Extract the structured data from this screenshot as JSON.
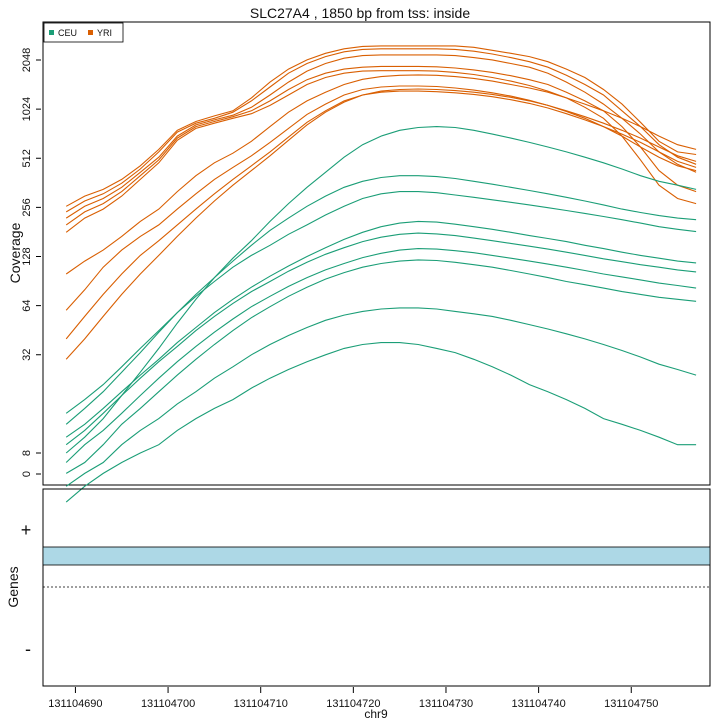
{
  "chart_data": {
    "type": "line",
    "title": "SLC27A4 , 1850 bp from tss: inside",
    "ylabel": "Coverage",
    "xlabel": "chr9",
    "y_scale": "log2",
    "y_ticks": [
      0,
      8,
      32,
      64,
      128,
      256,
      512,
      1024,
      2048
    ],
    "x_ticks": [
      131104690,
      131104700,
      131104710,
      131104720,
      131104730,
      131104740,
      131104750
    ],
    "xlim": [
      131104690,
      131104757
    ],
    "legend_placement": "top-left",
    "legend": [
      {
        "name": "CEU",
        "color": "#1b9e77"
      },
      {
        "name": "YRI",
        "color": "#d95f02"
      }
    ],
    "grid": false,
    "series_template": {
      "x": [
        131104689,
        131104691,
        131104693,
        131104695,
        131104697,
        131104699,
        131104701,
        131104703,
        131104705,
        131104707,
        131104709,
        131104711,
        131104713,
        131104715,
        131104717,
        131104719,
        131104721,
        131104723,
        131104725,
        131104727,
        131104729,
        131104731,
        131104733,
        131104735,
        131104737,
        131104739,
        131104741,
        131104743,
        131104745,
        131104747,
        131104749,
        131104751,
        131104753,
        131104755,
        131104757
      ]
    },
    "series": [
      {
        "group": "YRI",
        "values": [
          260,
          300,
          330,
          380,
          460,
          580,
          760,
          860,
          930,
          1000,
          1200,
          1500,
          1800,
          2050,
          2250,
          2400,
          2480,
          2500,
          2500,
          2500,
          2500,
          2500,
          2450,
          2350,
          2250,
          2150,
          2000,
          1800,
          1600,
          1350,
          1100,
          850,
          650,
          560,
          540
        ]
      },
      {
        "group": "YRI",
        "values": [
          240,
          280,
          310,
          360,
          440,
          560,
          740,
          840,
          900,
          980,
          1150,
          1400,
          1700,
          1950,
          2150,
          2300,
          2380,
          2400,
          2400,
          2400,
          2400,
          2380,
          2320,
          2230,
          2120,
          2000,
          1850,
          1650,
          1450,
          1250,
          1000,
          800,
          620,
          520,
          470
        ]
      },
      {
        "group": "YRI",
        "values": [
          220,
          260,
          290,
          340,
          420,
          520,
          700,
          820,
          880,
          940,
          1050,
          1250,
          1500,
          1750,
          1950,
          2100,
          2180,
          2200,
          2200,
          2200,
          2200,
          2180,
          2120,
          2050,
          1950,
          1850,
          1700,
          1500,
          1300,
          1100,
          900,
          720,
          560,
          470,
          420
        ]
      },
      {
        "group": "YRI",
        "values": [
          200,
          240,
          270,
          320,
          400,
          500,
          680,
          800,
          860,
          920,
          1000,
          1150,
          1350,
          1550,
          1700,
          1800,
          1850,
          1870,
          1870,
          1870,
          1860,
          1830,
          1780,
          1720,
          1640,
          1550,
          1450,
          1300,
          1150,
          1000,
          800,
          600,
          430,
          350,
          320
        ]
      },
      {
        "group": "YRI",
        "values": [
          180,
          220,
          250,
          300,
          380,
          480,
          660,
          780,
          840,
          900,
          960,
          1080,
          1250,
          1450,
          1600,
          1700,
          1750,
          1760,
          1760,
          1760,
          1750,
          1720,
          1670,
          1600,
          1520,
          1430,
          1320,
          1200,
          1050,
          900,
          700,
          500,
          350,
          290,
          270
        ]
      },
      {
        "group": "YRI",
        "values": [
          100,
          120,
          140,
          170,
          210,
          250,
          320,
          400,
          480,
          550,
          650,
          800,
          980,
          1150,
          1300,
          1450,
          1560,
          1620,
          1650,
          1660,
          1650,
          1620,
          1580,
          1520,
          1450,
          1380,
          1300,
          1200,
          1100,
          1000,
          900,
          800,
          700,
          620,
          580
        ]
      },
      {
        "group": "YRI",
        "values": [
          60,
          80,
          110,
          140,
          170,
          200,
          250,
          310,
          380,
          450,
          530,
          640,
          780,
          950,
          1100,
          1250,
          1350,
          1400,
          1420,
          1420,
          1410,
          1380,
          1340,
          1290,
          1230,
          1160,
          1080,
          990,
          900,
          800,
          700,
          600,
          520,
          460,
          430
        ]
      },
      {
        "group": "YRI",
        "values": [
          40,
          55,
          75,
          100,
          130,
          160,
          200,
          250,
          310,
          380,
          460,
          560,
          690,
          850,
          1000,
          1150,
          1250,
          1300,
          1320,
          1320,
          1310,
          1290,
          1260,
          1220,
          1170,
          1110,
          1040,
          960,
          880,
          800,
          720,
          640,
          560,
          490,
          450
        ]
      },
      {
        "group": "YRI",
        "values": [
          30,
          40,
          55,
          75,
          100,
          130,
          170,
          220,
          280,
          350,
          430,
          530,
          660,
          820,
          980,
          1130,
          1250,
          1320,
          1350,
          1360,
          1350,
          1330,
          1300,
          1260,
          1210,
          1150,
          1080,
          1000,
          920,
          840,
          760,
          680,
          600,
          530,
          490
        ]
      },
      {
        "group": "CEU",
        "values": [
          8,
          10,
          13,
          18,
          25,
          35,
          50,
          70,
          95,
          125,
          160,
          210,
          270,
          340,
          420,
          520,
          620,
          700,
          760,
          790,
          800,
          790,
          760,
          720,
          680,
          640,
          600,
          560,
          520,
          480,
          440,
          400,
          370,
          350,
          330
        ]
      },
      {
        "group": "CEU",
        "values": [
          12,
          15,
          19,
          25,
          33,
          44,
          58,
          75,
          95,
          120,
          150,
          185,
          220,
          260,
          300,
          340,
          370,
          390,
          400,
          400,
          395,
          385,
          370,
          355,
          340,
          325,
          310,
          295,
          280,
          265,
          250,
          238,
          228,
          220,
          215
        ]
      },
      {
        "group": "CEU",
        "values": [
          14,
          17,
          21,
          27,
          35,
          45,
          58,
          73,
          90,
          110,
          130,
          150,
          175,
          200,
          230,
          260,
          290,
          310,
          320,
          320,
          315,
          305,
          295,
          285,
          275,
          265,
          255,
          245,
          235,
          225,
          215,
          205,
          195,
          188,
          182
        ]
      },
      {
        "group": "CEU",
        "values": [
          10,
          12,
          15,
          19,
          24,
          30,
          38,
          47,
          58,
          70,
          83,
          97,
          112,
          128,
          145,
          163,
          180,
          195,
          205,
          210,
          208,
          202,
          195,
          188,
          180,
          172,
          165,
          158,
          150,
          143,
          136,
          130,
          125,
          120,
          117
        ]
      },
      {
        "group": "CEU",
        "values": [
          9,
          11,
          14,
          18,
          23,
          29,
          36,
          45,
          55,
          66,
          78,
          90,
          104,
          118,
          132,
          145,
          158,
          168,
          175,
          178,
          176,
          172,
          166,
          160,
          154,
          148,
          142,
          136,
          130,
          124,
          119,
          114,
          110,
          106,
          103
        ]
      },
      {
        "group": "CEU",
        "values": [
          7,
          9,
          11,
          14,
          18,
          23,
          29,
          36,
          44,
          53,
          63,
          73,
          84,
          95,
          106,
          116,
          126,
          134,
          140,
          143,
          142,
          139,
          135,
          130,
          125,
          120,
          115,
          110,
          105,
          100,
          96,
          92,
          88,
          85,
          82
        ]
      },
      {
        "group": "CEU",
        "values": [
          6,
          7,
          9,
          12,
          15,
          19,
          24,
          30,
          37,
          45,
          54,
          63,
          73,
          83,
          93,
          102,
          110,
          116,
          120,
          122,
          121,
          118,
          114,
          110,
          105,
          100,
          95,
          90,
          86,
          82,
          78,
          75,
          72,
          70,
          68
        ]
      },
      {
        "group": "CEU",
        "values": [
          5,
          6,
          7,
          9,
          11,
          13,
          16,
          19,
          23,
          27,
          32,
          37,
          42,
          47,
          52,
          56,
          59,
          61,
          62,
          62,
          61,
          59,
          57,
          55,
          52,
          49,
          46,
          43,
          40,
          37,
          34,
          31,
          28,
          26,
          24
        ]
      },
      {
        "group": "CEU",
        "values": [
          4,
          5,
          6,
          7,
          8,
          9,
          11,
          13,
          15,
          17,
          20,
          23,
          26,
          29,
          32,
          35,
          37,
          38,
          38,
          37,
          35,
          33,
          30,
          27,
          24,
          21,
          19,
          17,
          15,
          13,
          12,
          11,
          10,
          9,
          9
        ]
      }
    ],
    "panels": {
      "coverage_label": "Coverage",
      "genes_label": "Genes",
      "plus_strand": "+",
      "minus_strand": "-"
    }
  }
}
